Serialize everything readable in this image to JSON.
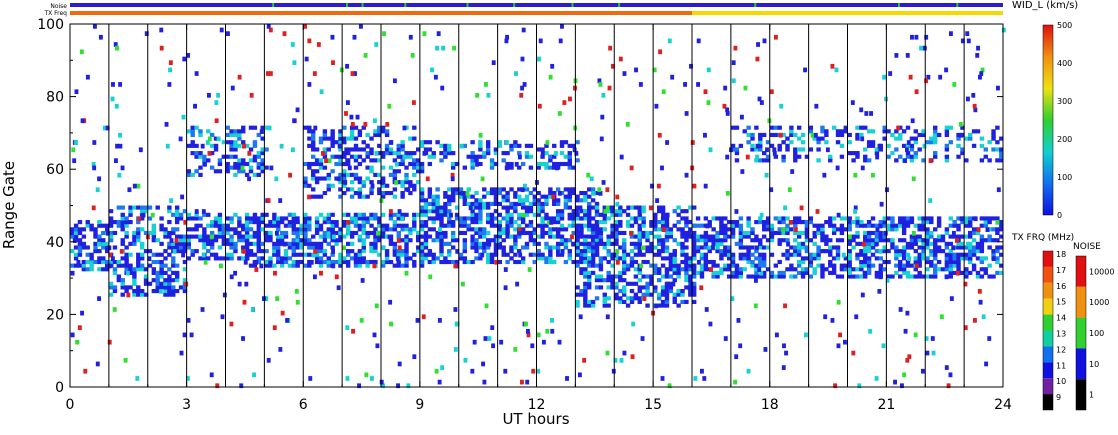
{
  "strip_labels": {
    "noise": "Noise",
    "tx_freq": "TX Freq"
  },
  "colors": {
    "strip_noise_base": "#2b1ccf",
    "strip_noise_alt": "#19d22c",
    "strip_tx_before": "#f06a10",
    "strip_tx_after": "#f5d800",
    "scatter_main": "#2020e0",
    "scatter_light": "#1e78f0",
    "scatter_cyan": "#18d2d2",
    "scatter_green": "#30e030",
    "scatter_red": "#e02020"
  },
  "chart_data": {
    "type": "heatmap",
    "xlabel": "UT hours",
    "ylabel": "Range Gate",
    "xlim": [
      0,
      24
    ],
    "ylim": [
      0,
      100
    ],
    "x_ticks": [
      "0",
      "3",
      "6",
      "9",
      "12",
      "15",
      "18",
      "21",
      "24"
    ],
    "y_ticks": [
      "0",
      "20",
      "40",
      "60",
      "80",
      "100"
    ],
    "scan_boundaries_ut": [
      1,
      2,
      3,
      4,
      5,
      6,
      7,
      8,
      9,
      10,
      11,
      12,
      13,
      14,
      15,
      16,
      17,
      18,
      19,
      20,
      21,
      22,
      23
    ],
    "mode_change_ut": 16,
    "grid": false,
    "scatter_bands": [
      {
        "x_start": 0.0,
        "x_end": 1.0,
        "gate_low": 32,
        "gate_high": 46,
        "density": 0.55
      },
      {
        "x_start": 1.0,
        "x_end": 3.0,
        "gate_low": 25,
        "gate_high": 50,
        "density": 0.45
      },
      {
        "x_start": 3.0,
        "x_end": 4.5,
        "gate_low": 35,
        "gate_high": 48,
        "density": 0.55
      },
      {
        "x_start": 3.0,
        "x_end": 5.0,
        "gate_low": 58,
        "gate_high": 72,
        "density": 0.35
      },
      {
        "x_start": 4.5,
        "x_end": 9.0,
        "gate_low": 33,
        "gate_high": 48,
        "density": 0.6
      },
      {
        "x_start": 6.0,
        "x_end": 9.0,
        "gate_low": 52,
        "gate_high": 72,
        "density": 0.4
      },
      {
        "x_start": 9.0,
        "x_end": 13.5,
        "gate_low": 34,
        "gate_high": 55,
        "density": 0.55
      },
      {
        "x_start": 9.0,
        "x_end": 13.0,
        "gate_low": 60,
        "gate_high": 68,
        "density": 0.3
      },
      {
        "x_start": 13.0,
        "x_end": 16.0,
        "gate_low": 22,
        "gate_high": 50,
        "density": 0.5
      },
      {
        "x_start": 16.0,
        "x_end": 24.0,
        "gate_low": 30,
        "gate_high": 47,
        "density": 0.55
      },
      {
        "x_start": 17.0,
        "x_end": 24.0,
        "gate_low": 62,
        "gate_high": 72,
        "density": 0.3
      }
    ]
  },
  "colorbars": {
    "width": {
      "title": "WID_L (km/s)",
      "ticks": [
        "500",
        "400",
        "300",
        "200",
        "100",
        "0"
      ],
      "stops": [
        "#e01010",
        "#f09010",
        "#f0e010",
        "#30d030",
        "#10d0d0",
        "#1070f0",
        "#1010e0"
      ]
    },
    "tx_freq": {
      "title": "TX FRQ (MHz)",
      "ticks": [
        "18",
        "17",
        "16",
        "15",
        "14",
        "13",
        "12",
        "11",
        "10",
        "9"
      ],
      "blocks": [
        "#e01010",
        "#f05010",
        "#f09010",
        "#f0d010",
        "#30d030",
        "#10d0a0",
        "#1070f0",
        "#1010e0",
        "#7020a0",
        "#000000"
      ]
    },
    "noise": {
      "title": "NOISE",
      "ticks": [
        "10000",
        "1000",
        "100",
        "10",
        "1"
      ],
      "blocks": [
        "#e01010",
        "#f09010",
        "#30d030",
        "#1010e0",
        "#000000"
      ]
    }
  }
}
